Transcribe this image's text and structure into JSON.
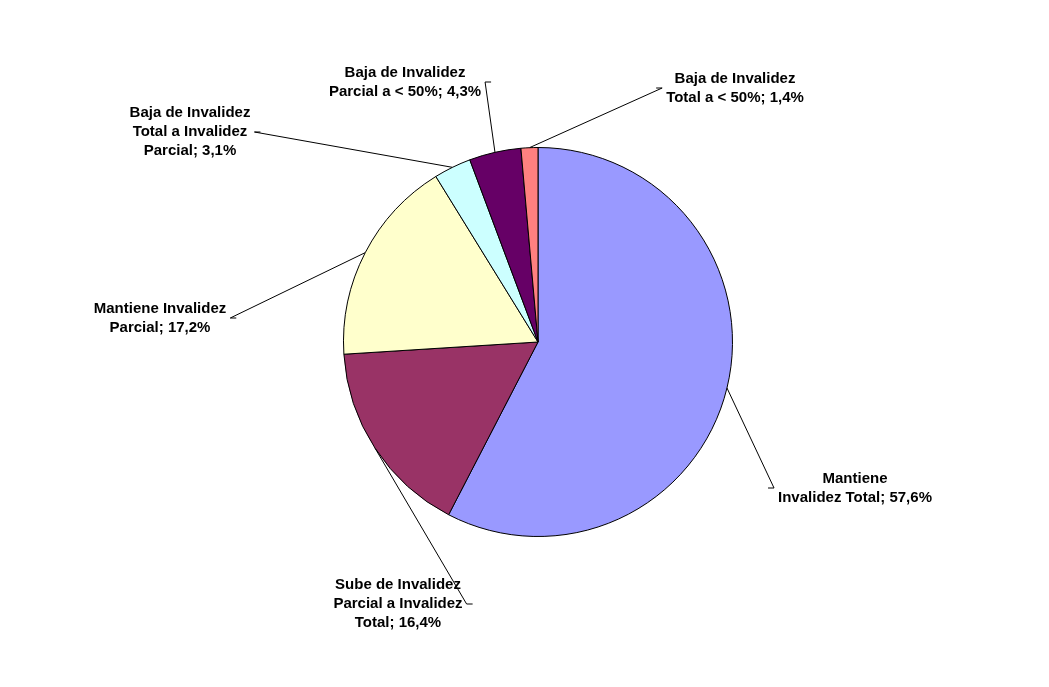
{
  "chart_data": {
    "type": "pie",
    "categories": [
      "Mantiene Invalidez Total",
      "Sube de Invalidez Parcial a Invalidez Total",
      "Mantiene Invalidez Parcial",
      "Baja de Invalidez Total a Invalidez Parcial",
      "Baja de Invalidez Parcial a < 50%",
      "Baja de Invalidez Total a < 50%"
    ],
    "values": [
      57.6,
      16.4,
      17.2,
      3.1,
      4.3,
      1.4
    ],
    "value_labels": [
      "57,6%",
      "16,4%",
      "17,2%",
      "3,1%",
      "4,3%",
      "1,4%"
    ],
    "colors": [
      "#9999ff",
      "#993366",
      "#ffffcc",
      "#ccffff",
      "#660066",
      "#ff8080"
    ],
    "legend": false
  }
}
